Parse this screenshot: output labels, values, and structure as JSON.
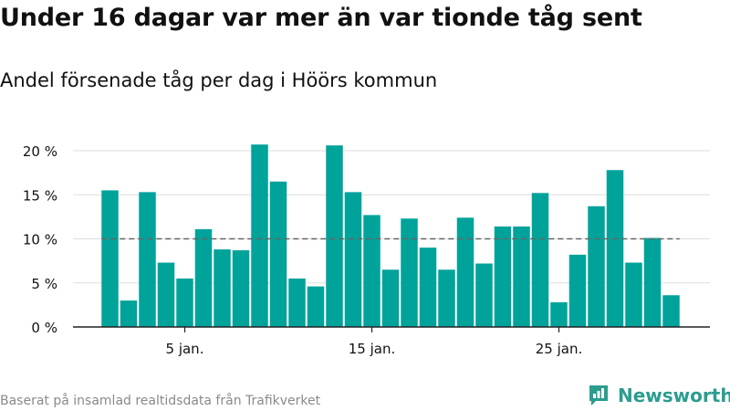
{
  "title": "Under 16 dagar var mer än var tionde tåg sent",
  "subtitle": "Andel försenade tåg per dag i Höörs kommun",
  "source": "Baserat på insamlad realtidsdata från Trafikverket",
  "brand": {
    "name": "Newsworthy",
    "icon": "bar-chart-logo-icon"
  },
  "colors": {
    "bar": "#00a39a",
    "grid": "#dddddd",
    "reference_line": "#666666",
    "axis": "#222222",
    "text": "#111111",
    "footer_text": "#8a8a8a",
    "brand": "#2a9d8f"
  },
  "chart_data": {
    "type": "bar",
    "x": [
      1,
      2,
      3,
      4,
      5,
      6,
      7,
      8,
      9,
      10,
      11,
      12,
      13,
      14,
      15,
      16,
      17,
      18,
      19,
      20,
      21,
      22,
      23,
      24,
      25,
      26,
      27,
      28,
      29,
      30,
      31
    ],
    "values": [
      15.5,
      3.0,
      15.3,
      7.3,
      5.5,
      11.1,
      8.8,
      8.7,
      20.7,
      16.5,
      5.5,
      4.6,
      20.6,
      15.3,
      12.7,
      6.5,
      12.3,
      9.0,
      6.5,
      12.4,
      7.2,
      11.4,
      11.4,
      15.2,
      2.8,
      8.2,
      13.7,
      17.8,
      7.3,
      10.1,
      3.6
    ],
    "xlim": [
      0.5,
      31.5
    ],
    "ylim": [
      0,
      20
    ],
    "yticks": [
      0,
      5,
      10,
      15,
      20
    ],
    "ytick_labels": [
      "0 %",
      "5 %",
      "10 %",
      "15 %",
      "20 %"
    ],
    "xticks": [
      5,
      15,
      25
    ],
    "xtick_labels": [
      "5 jan.",
      "15 jan.",
      "25 jan."
    ],
    "reference_line": 10,
    "grid": true
  }
}
